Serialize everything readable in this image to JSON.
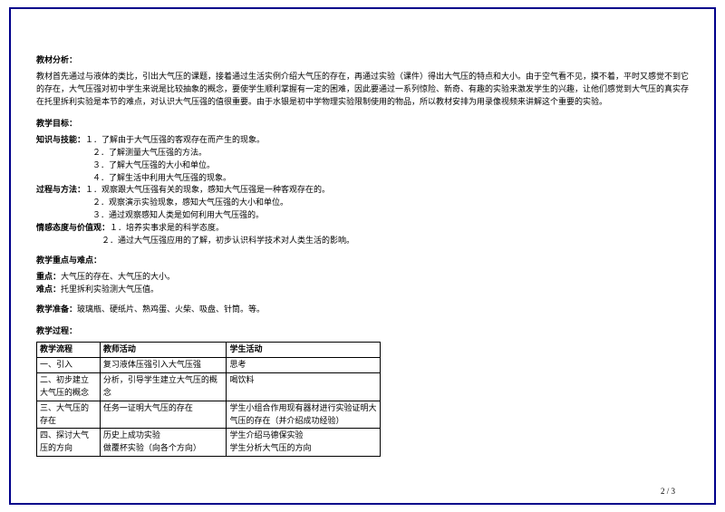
{
  "analysis": {
    "title": "教材分析：",
    "body": "教材首先通过与液体的类比，引出大气压的课题，接着通过生活实例介绍大气压的存在，再通过实验（课件）得出大气压的特点和大小。由于空气看不见，摸不着，平时又感觉不到它的存在，大气压强对初中学生来说是比较抽象的概念，要使学生顺利掌握有一定的困难，因此要通过一系列惊险、新奇、有趣的实验来激发学生的兴趣，让他们感觉到大气压的真实存在托里拆利实验是本节的难点，对认识大气压强的值很重要。由于水银是初中学物理实验限制使用的物品，所以教材安排为用录像视频来讲解这个重要的实验。"
  },
  "objectives": {
    "title": "教学目标：",
    "knowledge": {
      "label": "知识与技能：",
      "items": [
        "１．了解由于大气压强的客观存在而产生的现象。",
        "２．了解测量大气压强的方法。",
        "３．了解大气压强的大小和单位。",
        "４．了解生活中利用大气压强的现象。"
      ]
    },
    "process": {
      "label": "过程与方法：",
      "items": [
        "１．观察跟大气压强有关的现象，感知大气压强是一种客观存在的。",
        "２．观察演示实验现象，感知大气压强的大小和单位。",
        "３．通过观察感知人类是如何利用大气压强的。"
      ]
    },
    "emotion": {
      "label": "情感态度与价值观：",
      "items": [
        "１．培养实事求是的科学态度。",
        "２．通过大气压强应用的了解，初步认识科学技术对人类生活的影响。"
      ]
    }
  },
  "keypoints": {
    "title": "教学重点与难点：",
    "key_label": "重点：",
    "key_text": "大气压的存在、大气压的大小。",
    "diff_label": "难点：",
    "diff_text": "托里拆利实验测大气压值。"
  },
  "prep": {
    "label": "教学准备：",
    "text": "玻璃瓶、硬纸片、熟鸡蛋、火柴、吸盘、针筒。等。"
  },
  "procedure": {
    "title": "教学过程：",
    "headers": [
      "教学流程",
      "教师活动",
      "学生活动"
    ],
    "rows": [
      [
        "一、引入",
        "复习液体压强引入大气压强",
        "思考"
      ],
      [
        "二、初步建立大气压的概念",
        "分析，引导学生建立大气压的概念",
        "喝饮料"
      ],
      [
        "三、大气压的存在",
        "任务一证明大气压的存在",
        "学生小组合作用现有器材进行实验证明大气压的存在（并介绍成功经验）"
      ],
      [
        "四、探讨大气压的方向",
        "历史上成功实验\n做覆杯实验（向各个方向）",
        "学生介绍马德保实验\n学生分析大气压的方向"
      ]
    ]
  },
  "footer": "2 / 3"
}
